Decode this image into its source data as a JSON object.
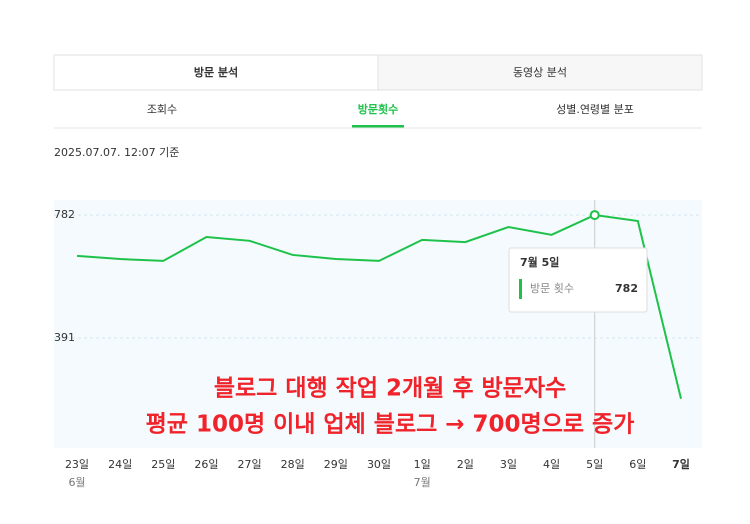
{
  "tabs": [
    "방문 분석",
    "동영상 분석"
  ],
  "subtabs": [
    "조회수",
    "방문횟수",
    "성별.연령별 분포"
  ],
  "timestamp": "2025.07.07. 12:07 기준",
  "chart_data": {
    "type": "line",
    "categories": [
      "23일",
      "24일",
      "25일",
      "26일",
      "27일",
      "28일",
      "29일",
      "30일",
      "1일",
      "2일",
      "3일",
      "4일",
      "5일",
      "6일",
      "7일"
    ],
    "month_labels": [
      "6월",
      null,
      null,
      null,
      null,
      null,
      null,
      null,
      "7월",
      null,
      null,
      null,
      null,
      null,
      null
    ],
    "series": [
      {
        "name": "방문 횟수",
        "color": "#1ec24b",
        "values": [
          652,
          642,
          636,
          712,
          700,
          655,
          642,
          636,
          703,
          696,
          744,
          719,
          782,
          763,
          197
        ]
      }
    ],
    "ylim": [
      40,
      830
    ],
    "yticks": [
      391,
      782
    ],
    "grid": true,
    "tooltip": {
      "title": "7월 5일",
      "index": 12
    },
    "annotation": [
      "블로그 대행 작업  2개월 후 방문자수",
      "평균 100명 이내 업체 블로그 →  700명으로 증가"
    ]
  }
}
